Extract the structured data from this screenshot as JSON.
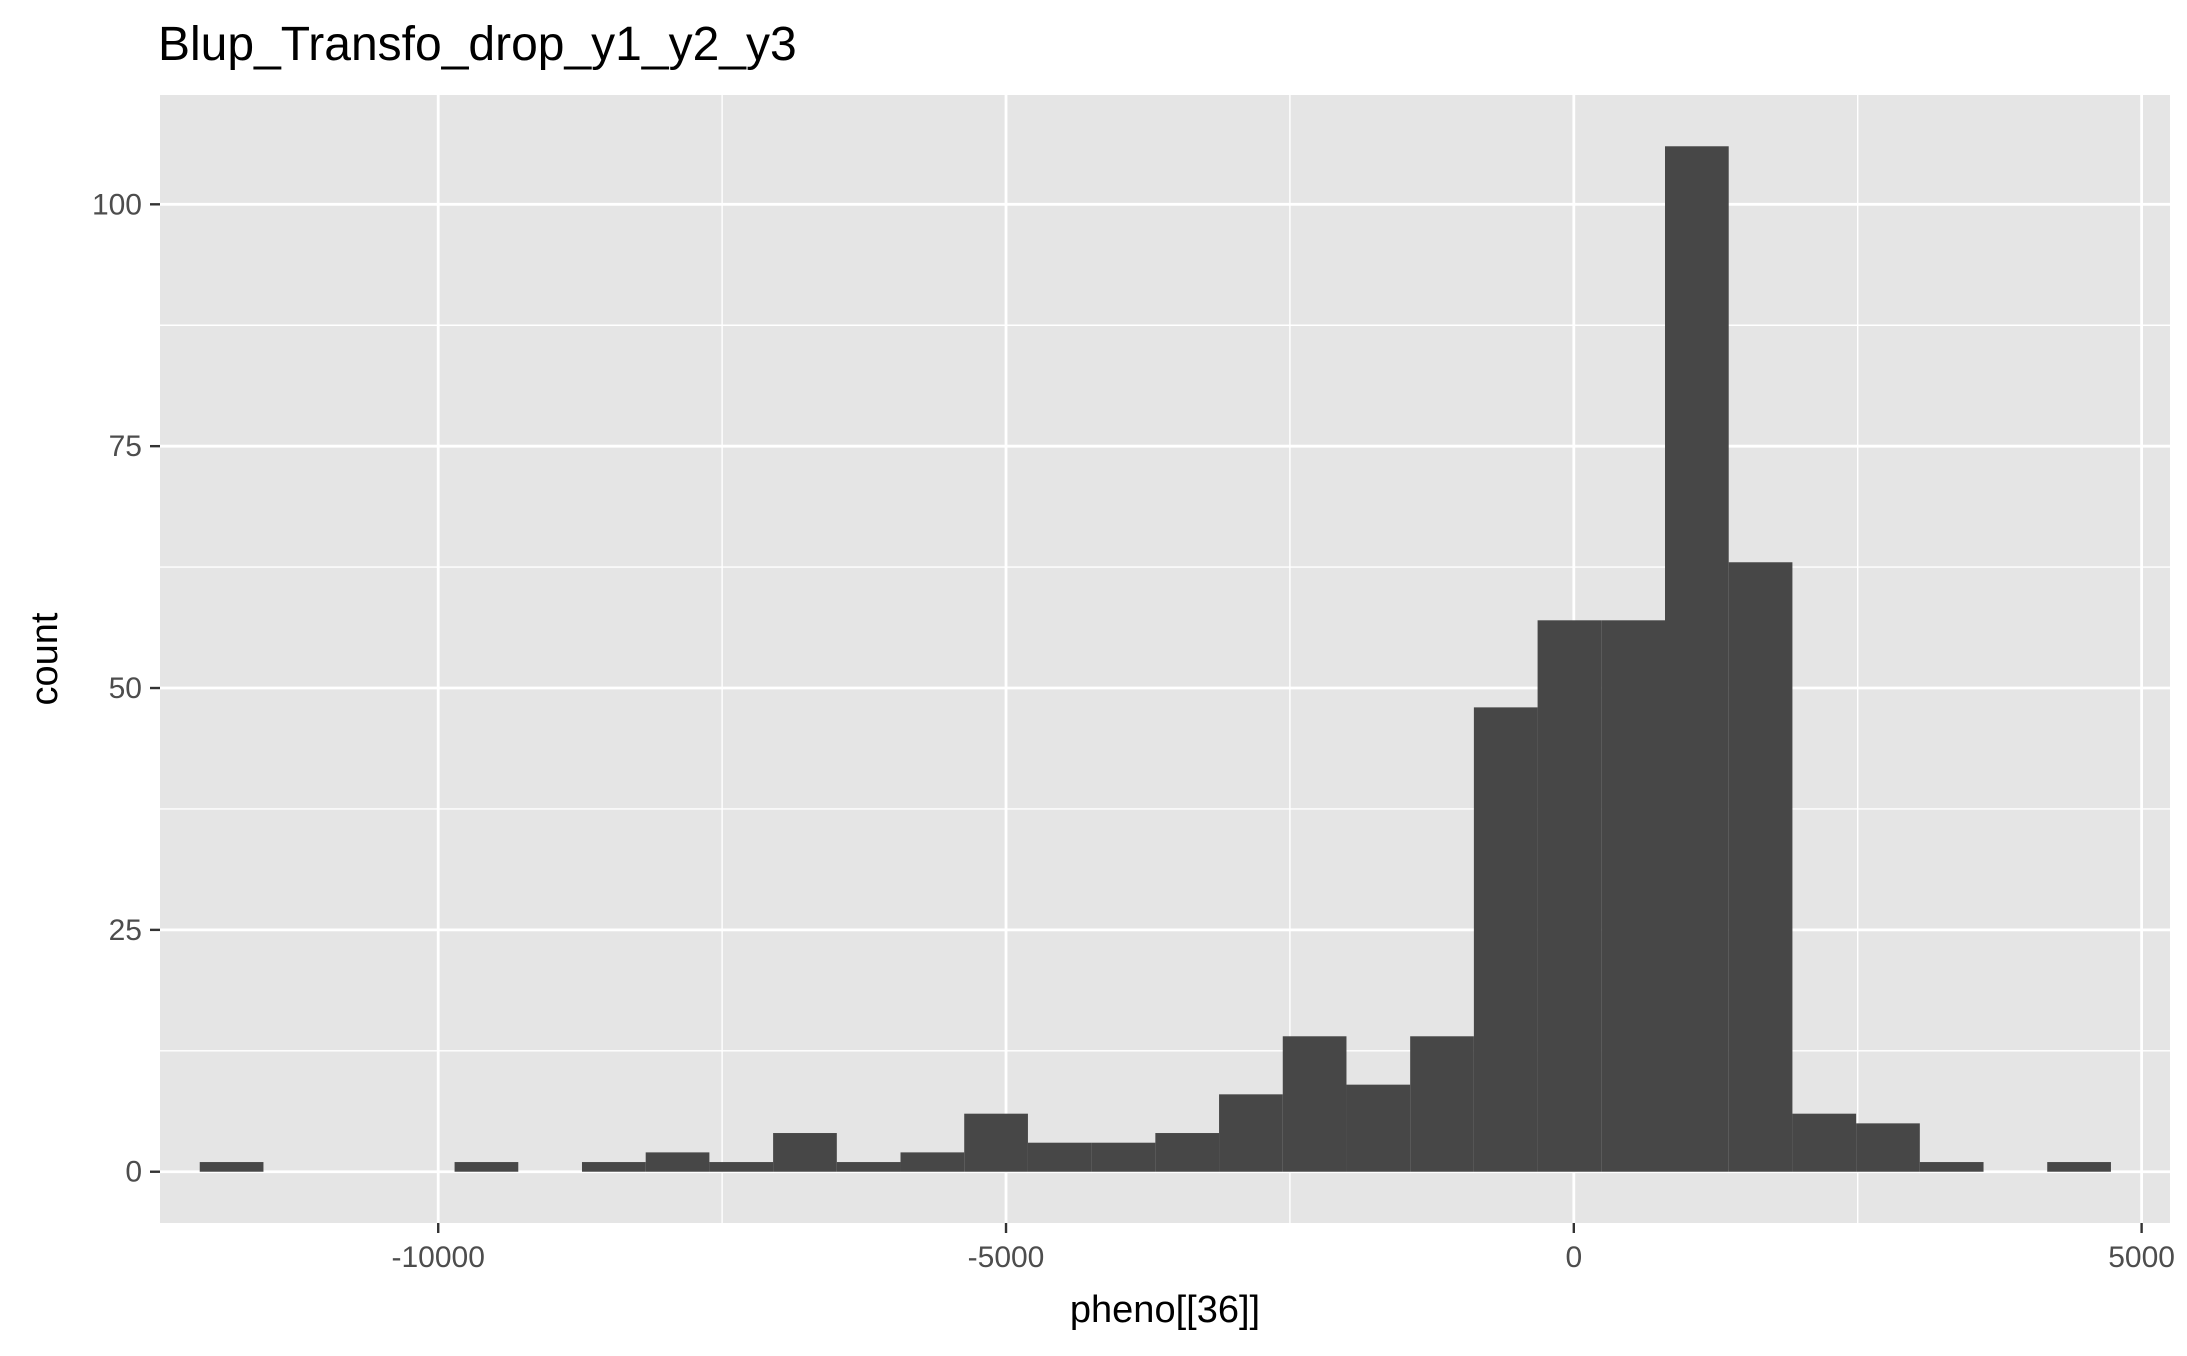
{
  "chart_data": {
    "type": "bar",
    "title": "Blup_Transfo_drop_y1_y2_y3",
    "xlabel": "pheno[[36]]",
    "ylabel": "count",
    "xlim": [
      -12450,
      5250
    ],
    "ylim": [
      -5.3,
      111.3
    ],
    "x_ticks": [
      -10000,
      -5000,
      0,
      5000
    ],
    "x_tick_labels": [
      "-10000",
      "-5000",
      "0",
      "5000"
    ],
    "y_ticks": [
      0,
      25,
      50,
      75,
      100
    ],
    "y_tick_labels": [
      "0",
      "25",
      "50",
      "75",
      "100"
    ],
    "grid": true,
    "bin_width": 561,
    "bins": [
      {
        "x0": -12100,
        "x1": -11539,
        "count": 1
      },
      {
        "x0": -11539,
        "x1": -10978,
        "count": 0
      },
      {
        "x0": -10978,
        "x1": -10417,
        "count": 0
      },
      {
        "x0": -10417,
        "x1": -9856,
        "count": 0
      },
      {
        "x0": -9856,
        "x1": -9295,
        "count": 1
      },
      {
        "x0": -9295,
        "x1": -8734,
        "count": 0
      },
      {
        "x0": -8734,
        "x1": -8173,
        "count": 1
      },
      {
        "x0": -8173,
        "x1": -7612,
        "count": 2
      },
      {
        "x0": -7612,
        "x1": -7051,
        "count": 1
      },
      {
        "x0": -7051,
        "x1": -6490,
        "count": 4
      },
      {
        "x0": -6490,
        "x1": -5929,
        "count": 1
      },
      {
        "x0": -5929,
        "x1": -5368,
        "count": 2
      },
      {
        "x0": -5368,
        "x1": -4807,
        "count": 6
      },
      {
        "x0": -4807,
        "x1": -4246,
        "count": 3
      },
      {
        "x0": -4246,
        "x1": -3685,
        "count": 3
      },
      {
        "x0": -3685,
        "x1": -3124,
        "count": 4
      },
      {
        "x0": -3124,
        "x1": -2563,
        "count": 8
      },
      {
        "x0": -2563,
        "x1": -2002,
        "count": 14
      },
      {
        "x0": -2002,
        "x1": -1441,
        "count": 9
      },
      {
        "x0": -1441,
        "x1": -880,
        "count": 14
      },
      {
        "x0": -880,
        "x1": -319,
        "count": 48
      },
      {
        "x0": -319,
        "x1": 242,
        "count": 57
      },
      {
        "x0": 242,
        "x1": 803,
        "count": 57
      },
      {
        "x0": 803,
        "x1": 1364,
        "count": 106
      },
      {
        "x0": 1364,
        "x1": 1925,
        "count": 63
      },
      {
        "x0": 1925,
        "x1": 2486,
        "count": 6
      },
      {
        "x0": 2486,
        "x1": 3047,
        "count": 5
      },
      {
        "x0": 3047,
        "x1": 3608,
        "count": 1
      },
      {
        "x0": 3608,
        "x1": 4169,
        "count": 0
      },
      {
        "x0": 4169,
        "x1": 4730,
        "count": 1
      }
    ],
    "colors": {
      "panel_background": "#e5e5e5",
      "grid_major": "#ffffff",
      "bar_fill": "#474747",
      "tick_color": "#333333"
    }
  }
}
